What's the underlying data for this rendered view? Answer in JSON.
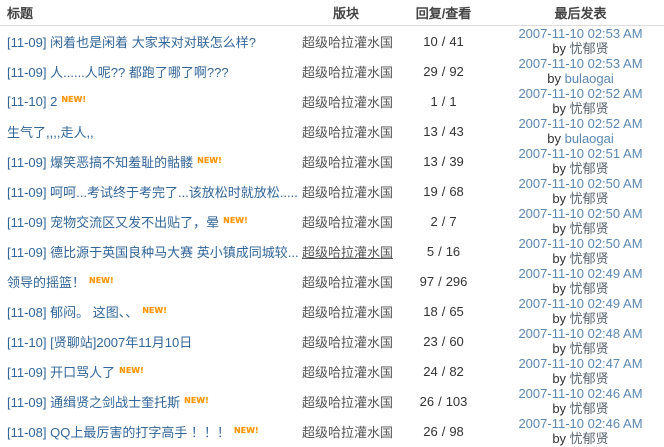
{
  "header": {
    "title": "标题",
    "forum": "版块",
    "replies_views": "回复/查看",
    "last_post": "最后发表"
  },
  "labels": {
    "by": "by",
    "new_badge": "NEW!",
    "replies_views_separator": "/"
  },
  "colors": {
    "title_link": "#336699",
    "forum_link": "#555555",
    "date_text": "#5c87b2",
    "body_text": "#333333",
    "new_badge": "#ff9500",
    "header_text": "#444444",
    "header_border": "#dddddd"
  },
  "rows": [
    {
      "title": "[11-09] 闲着也是闲着  大家来对对联怎么样?",
      "has_new": false,
      "forum": "超级哈拉灌水国",
      "forum_underlined": false,
      "replies": "10",
      "views": "41",
      "date": "2007-11-10 02:53 AM",
      "user": "忧郁贤"
    },
    {
      "title": "[11-09] 人......人呢?? 都跑了哪了啊???",
      "has_new": false,
      "forum": "超级哈拉灌水国",
      "forum_underlined": false,
      "replies": "29",
      "views": "92",
      "date": "2007-11-10 02:53 AM",
      "user": "bulaogai"
    },
    {
      "title": "[11-10] 2",
      "has_new": true,
      "forum": "超级哈拉灌水国",
      "forum_underlined": false,
      "replies": "1",
      "views": "1",
      "date": "2007-11-10 02:52 AM",
      "user": "忧郁贤"
    },
    {
      "title": "生气了,,,,走人,,",
      "has_new": false,
      "forum": "超级哈拉灌水国",
      "forum_underlined": false,
      "replies": "13",
      "views": "43",
      "date": "2007-11-10 02:52 AM",
      "user": "bulaogai"
    },
    {
      "title": "[11-09] 爆笑恶搞不知羞耻的骷髅",
      "has_new": true,
      "forum": "超级哈拉灌水国",
      "forum_underlined": false,
      "replies": "13",
      "views": "39",
      "date": "2007-11-10 02:51 AM",
      "user": "忧郁贤"
    },
    {
      "title": "[11-09] 呵呵...考试终于考完了...该放松时就放松.....",
      "has_new": false,
      "forum": "超级哈拉灌水国",
      "forum_underlined": false,
      "replies": "19",
      "views": "68",
      "date": "2007-11-10 02:50 AM",
      "user": "忧郁贤"
    },
    {
      "title": "[11-09] 宠物交流区又发不出贴了，晕",
      "has_new": true,
      "forum": "超级哈拉灌水国",
      "forum_underlined": false,
      "replies": "2",
      "views": "7",
      "date": "2007-11-10 02:50 AM",
      "user": "忧郁贤"
    },
    {
      "title": "[11-09] 德比源于英国良种马大赛  英小镇成同城较...",
      "has_new": false,
      "forum": "超级哈拉灌水国",
      "forum_underlined": true,
      "replies": "5",
      "views": "16",
      "date": "2007-11-10 02:50 AM",
      "user": "忧郁贤"
    },
    {
      "title": "领导的摇篮！",
      "has_new": true,
      "forum": "超级哈拉灌水国",
      "forum_underlined": false,
      "replies": "97",
      "views": "296",
      "date": "2007-11-10 02:49 AM",
      "user": "忧郁贤"
    },
    {
      "title": "[11-08] 郁闷。  这图、、",
      "has_new": true,
      "forum": "超级哈拉灌水国",
      "forum_underlined": false,
      "replies": "18",
      "views": "65",
      "date": "2007-11-10 02:49 AM",
      "user": "忧郁贤"
    },
    {
      "title": "[11-10] [贤聊站]2007年11月10日",
      "has_new": false,
      "forum": "超级哈拉灌水国",
      "forum_underlined": false,
      "replies": "23",
      "views": "60",
      "date": "2007-11-10 02:48 AM",
      "user": "忧郁贤"
    },
    {
      "title": "[11-09] 开口骂人了",
      "has_new": true,
      "forum": "超级哈拉灌水国",
      "forum_underlined": false,
      "replies": "24",
      "views": "82",
      "date": "2007-11-10 02:47 AM",
      "user": "忧郁贤"
    },
    {
      "title": "[11-09] 通缉贤之剑战士奎托斯",
      "has_new": true,
      "forum": "超级哈拉灌水国",
      "forum_underlined": false,
      "replies": "26",
      "views": "103",
      "date": "2007-11-10 02:46 AM",
      "user": "忧郁贤"
    },
    {
      "title": "[11-08] QQ上最厉害的打字高手 ！！！",
      "has_new": true,
      "forum": "超级哈拉灌水国",
      "forum_underlined": false,
      "replies": "26",
      "views": "98",
      "date": "2007-11-10 02:46 AM",
      "user": "忧郁贤"
    }
  ]
}
